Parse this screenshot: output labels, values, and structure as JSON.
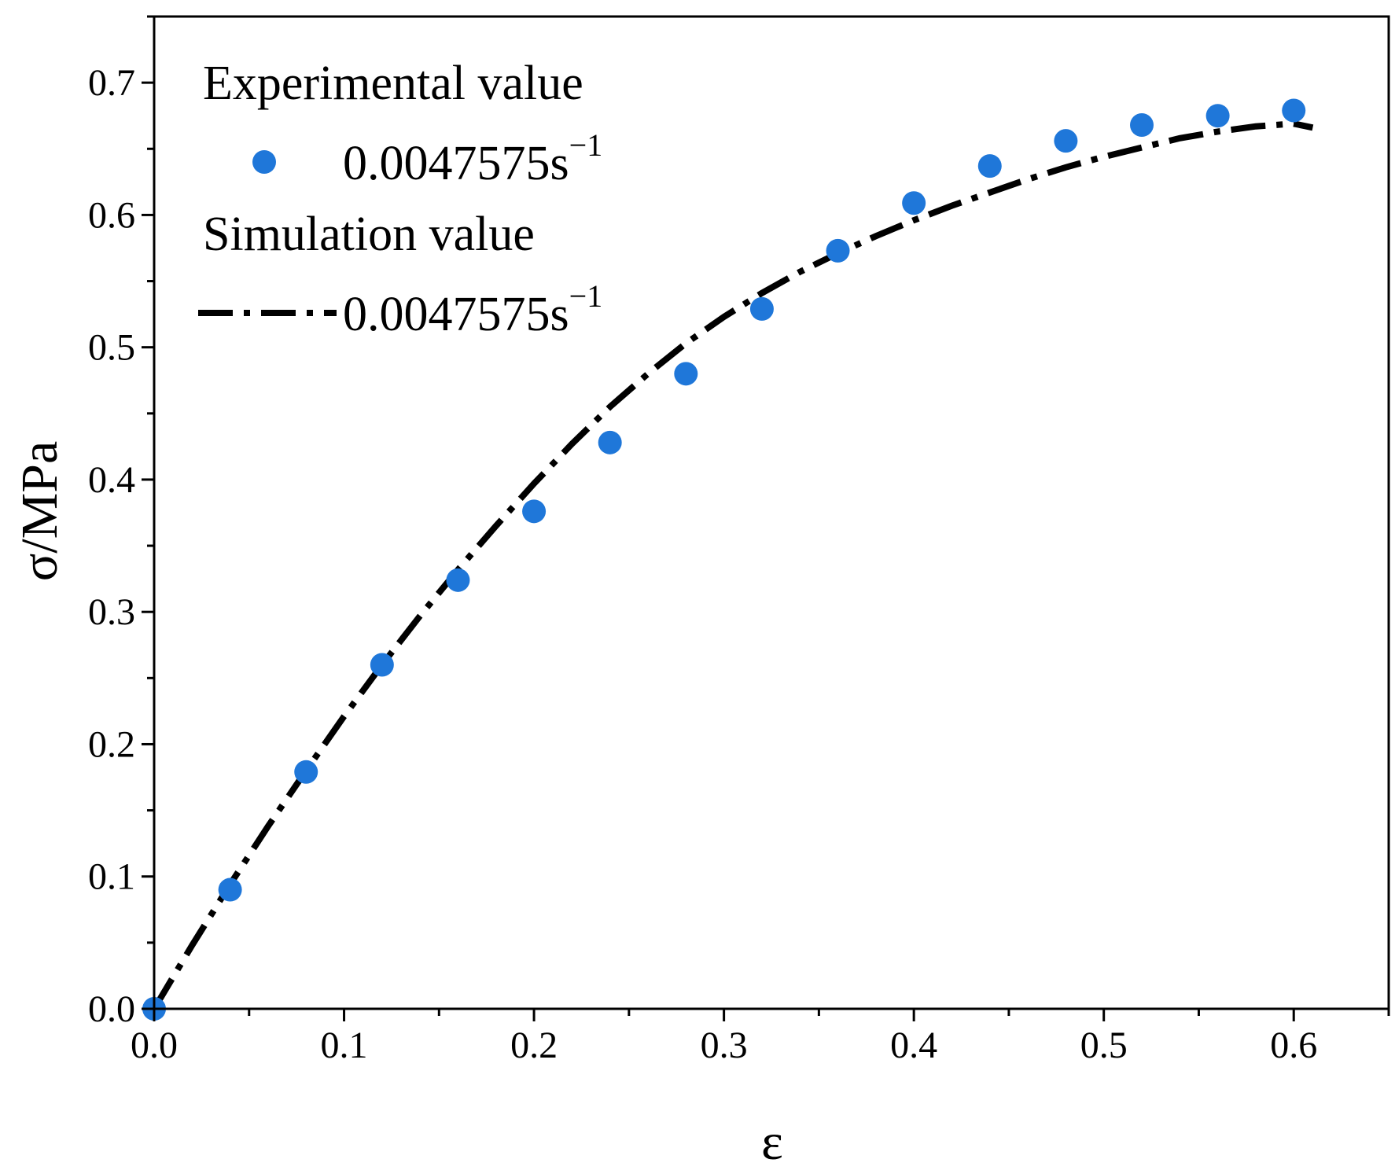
{
  "chart_data": {
    "type": "scatter",
    "title": "",
    "xlabel": "ε",
    "ylabel": "σ/MPa",
    "xlim": [
      0,
      0.65
    ],
    "ylim": [
      0,
      0.75
    ],
    "x_ticks": [
      "0.0",
      "0.1",
      "0.2",
      "0.3",
      "0.4",
      "0.5",
      "0.6"
    ],
    "y_ticks": [
      "0.0",
      "0.1",
      "0.2",
      "0.3",
      "0.4",
      "0.5",
      "0.6",
      "0.7"
    ],
    "grid": false,
    "legend_position": "top-left",
    "legend": {
      "experimental_heading": "Experimental value",
      "experimental_label": "0.0047575s",
      "experimental_sup": "−1",
      "simulation_heading": "Simulation value",
      "simulation_label": "0.0047575s",
      "simulation_sup": "−1"
    },
    "series": [
      {
        "name": "Experimental value 0.0047575s−1",
        "kind": "scatter",
        "color": "#1f77d9",
        "x": [
          0.0,
          0.04,
          0.08,
          0.12,
          0.16,
          0.2,
          0.24,
          0.28,
          0.32,
          0.36,
          0.4,
          0.44,
          0.48,
          0.52,
          0.56,
          0.6
        ],
        "y": [
          0.0,
          0.09,
          0.179,
          0.26,
          0.324,
          0.376,
          0.428,
          0.48,
          0.529,
          0.573,
          0.609,
          0.637,
          0.656,
          0.668,
          0.675,
          0.679
        ]
      },
      {
        "name": "Simulation value 0.0047575s−1",
        "kind": "line",
        "style": "dash-dot",
        "color": "#000000",
        "x": [
          0.0,
          0.02,
          0.04,
          0.06,
          0.08,
          0.1,
          0.12,
          0.14,
          0.16,
          0.18,
          0.2,
          0.22,
          0.24,
          0.26,
          0.28,
          0.3,
          0.32,
          0.34,
          0.36,
          0.38,
          0.4,
          0.42,
          0.44,
          0.46,
          0.48,
          0.5,
          0.52,
          0.54,
          0.56,
          0.58,
          0.6,
          0.61
        ],
        "y": [
          0.0,
          0.048,
          0.094,
          0.138,
          0.18,
          0.221,
          0.26,
          0.297,
          0.332,
          0.365,
          0.397,
          0.427,
          0.455,
          0.48,
          0.503,
          0.523,
          0.541,
          0.557,
          0.571,
          0.584,
          0.596,
          0.607,
          0.617,
          0.627,
          0.636,
          0.644,
          0.651,
          0.658,
          0.663,
          0.667,
          0.669,
          0.666
        ]
      }
    ]
  }
}
